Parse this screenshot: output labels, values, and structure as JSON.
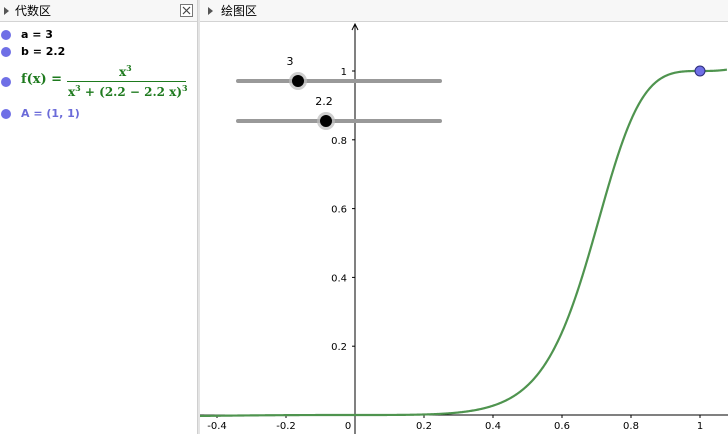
{
  "algebra_panel": {
    "title": "代数区",
    "items": {
      "a": "a = 3",
      "b": "b = 2.2",
      "f_lhs": "f(x) =",
      "f_num_base": "x",
      "f_num_exp": "3",
      "f_den_base": "x",
      "f_den_exp": "3",
      "f_den_rest": " + (2.2 − 2.2 x)",
      "f_den_exp2": "3",
      "point": "A = (1, 1)"
    }
  },
  "graphics_panel": {
    "title": "绘图区"
  },
  "sliders": [
    {
      "name": "a",
      "label": "3",
      "value": 3
    },
    {
      "name": "b",
      "label": "2.2",
      "value": 2.2
    }
  ],
  "colors": {
    "curve": "#4f944f",
    "point": "#6f6fe6",
    "slider_track": "#999999",
    "axis": "#000000"
  },
  "chart_data": {
    "type": "line",
    "function": "f(x) = x^3 / (x^3 + (2.2 - 2.2x)^3)",
    "parameters": {
      "a": 3,
      "b": 2.2
    },
    "xlim": [
      -0.45,
      1.08
    ],
    "ylim": [
      -0.005,
      1.16
    ],
    "x_ticks": [
      -0.4,
      -0.2,
      0,
      0.2,
      0.4,
      0.6,
      0.8,
      1
    ],
    "x_tick_labels": [
      "-0.4",
      "-0.2",
      "0",
      "0.2",
      "0.4",
      "0.6",
      "0.8",
      "1"
    ],
    "y_ticks": [
      0.2,
      0.4,
      0.6,
      0.8,
      1
    ],
    "y_tick_labels": [
      "0.2",
      "0.4",
      "0.6",
      "0.8",
      "1"
    ],
    "points": [
      {
        "name": "A",
        "x": 1,
        "y": 1
      }
    ],
    "grid": false
  }
}
